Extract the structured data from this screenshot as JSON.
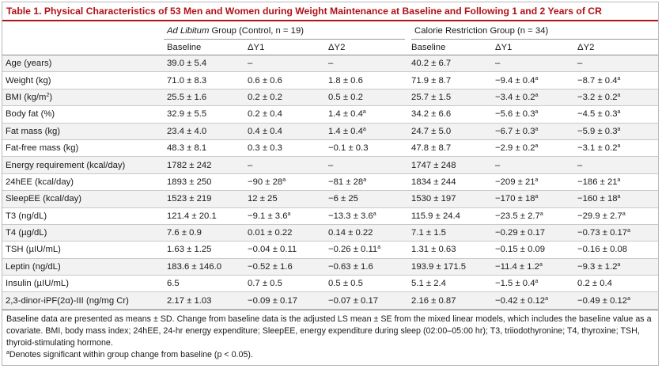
{
  "caption": "Table 1.  Physical Characteristics of 53 Men and Women during Weight Maintenance at Baseline and Following 1 and 2 Years of CR",
  "groups": {
    "al_italic": "Ad Libitum",
    "al_rest": " Group (Control, n = 19)",
    "cr": "Calorie Restriction Group (n = 34)"
  },
  "columns": [
    "Baseline",
    "ΔY1",
    "ΔY2",
    "Baseline",
    "ΔY1",
    "ΔY2"
  ],
  "significance_marker": "a",
  "rows": [
    {
      "label": "Age (years)",
      "cells": [
        {
          "v": "39.0 ± 5.4"
        },
        {
          "v": "–"
        },
        {
          "v": "–"
        },
        {
          "v": "40.2 ± 6.7"
        },
        {
          "v": "–"
        },
        {
          "v": "–"
        }
      ]
    },
    {
      "label": "Weight (kg)",
      "cells": [
        {
          "v": "71.0 ± 8.3"
        },
        {
          "v": "0.6 ± 0.6"
        },
        {
          "v": "1.8 ± 0.6"
        },
        {
          "v": "71.9 ± 8.7"
        },
        {
          "v": "−9.4 ± 0.4",
          "sig": true
        },
        {
          "v": "−8.7 ± 0.4",
          "sig": true
        }
      ]
    },
    {
      "label_main": "BMI (kg/m",
      "label_sup": "2",
      "label_tail": ")",
      "cells": [
        {
          "v": "25.5 ± 1.6"
        },
        {
          "v": "0.2 ± 0.2"
        },
        {
          "v": "0.5 ± 0.2"
        },
        {
          "v": "25.7 ± 1.5"
        },
        {
          "v": "−3.4 ± 0.2",
          "sig": true
        },
        {
          "v": "−3.2 ± 0.2",
          "sig": true
        }
      ]
    },
    {
      "label": "Body fat (%)",
      "cells": [
        {
          "v": "32.9 ± 5.5"
        },
        {
          "v": "0.2 ± 0.4"
        },
        {
          "v": "1.4 ± 0.4",
          "sig": true
        },
        {
          "v": "34.2 ± 6.6"
        },
        {
          "v": "−5.6 ± 0.3",
          "sig": true
        },
        {
          "v": "−4.5 ± 0.3",
          "sig": true
        }
      ]
    },
    {
      "label": "Fat mass (kg)",
      "cells": [
        {
          "v": "23.4 ± 4.0"
        },
        {
          "v": "0.4 ± 0.4"
        },
        {
          "v": "1.4 ± 0.4",
          "sig": true
        },
        {
          "v": "24.7 ± 5.0"
        },
        {
          "v": "−6.7 ± 0.3",
          "sig": true
        },
        {
          "v": "−5.9 ± 0.3",
          "sig": true
        }
      ]
    },
    {
      "label": "Fat-free mass (kg)",
      "cells": [
        {
          "v": "48.3 ± 8.1"
        },
        {
          "v": "0.3 ± 0.3"
        },
        {
          "v": "−0.1 ± 0.3"
        },
        {
          "v": "47.8 ± 8.7"
        },
        {
          "v": "−2.9 ± 0.2",
          "sig": true
        },
        {
          "v": "−3.1 ± 0.2",
          "sig": true
        }
      ]
    },
    {
      "label": "Energy requirement (kcal/day)",
      "cells": [
        {
          "v": "1782 ± 242"
        },
        {
          "v": "–"
        },
        {
          "v": "–"
        },
        {
          "v": "1747 ± 248"
        },
        {
          "v": "–"
        },
        {
          "v": "–"
        }
      ]
    },
    {
      "label": "24hEE (kcal/day)",
      "cells": [
        {
          "v": "1893 ± 250"
        },
        {
          "v": "−90 ± 28",
          "sig": true
        },
        {
          "v": "−81 ± 28",
          "sig": true
        },
        {
          "v": "1834 ± 244"
        },
        {
          "v": "−209 ± 21",
          "sig": true
        },
        {
          "v": "−186 ± 21",
          "sig": true
        }
      ]
    },
    {
      "label": "SleepEE (kcal/day)",
      "cells": [
        {
          "v": "1523 ± 219"
        },
        {
          "v": "12 ± 25"
        },
        {
          "v": "−6 ± 25"
        },
        {
          "v": "1530 ± 197"
        },
        {
          "v": "−170 ± 18",
          "sig": true
        },
        {
          "v": "−160 ± 18",
          "sig": true
        }
      ]
    },
    {
      "label": "T3 (ng/dL)",
      "cells": [
        {
          "v": "121.4 ± 20.1"
        },
        {
          "v": "−9.1 ± 3.6",
          "sig": true
        },
        {
          "v": "−13.3 ± 3.6",
          "sig": true
        },
        {
          "v": "115.9 ± 24.4"
        },
        {
          "v": "−23.5 ± 2.7",
          "sig": true
        },
        {
          "v": "−29.9 ± 2.7",
          "sig": true
        }
      ]
    },
    {
      "label": "T4 (µg/dL)",
      "cells": [
        {
          "v": "7.6 ± 0.9"
        },
        {
          "v": "0.01 ± 0.22"
        },
        {
          "v": "0.14 ± 0.22"
        },
        {
          "v": "7.1 ± 1.5"
        },
        {
          "v": "−0.29 ± 0.17"
        },
        {
          "v": "−0.73 ± 0.17",
          "sig": true
        }
      ]
    },
    {
      "label": "TSH (µIU/mL)",
      "cells": [
        {
          "v": "1.63 ± 1.25"
        },
        {
          "v": "−0.04 ± 0.11"
        },
        {
          "v": "−0.26 ± 0.11",
          "sig": true
        },
        {
          "v": "1.31 ± 0.63"
        },
        {
          "v": "−0.15 ± 0.09"
        },
        {
          "v": "−0.16 ± 0.08"
        }
      ]
    },
    {
      "label": "Leptin (ng/dL)",
      "cells": [
        {
          "v": "183.6 ± 146.0"
        },
        {
          "v": "−0.52 ± 1.6"
        },
        {
          "v": "−0.63 ± 1.6"
        },
        {
          "v": "193.9 ± 171.5"
        },
        {
          "v": "−11.4 ± 1.2",
          "sig": true
        },
        {
          "v": "−9.3 ± 1.2",
          "sig": true
        }
      ]
    },
    {
      "label": "Insulin (µIU/mL)",
      "cells": [
        {
          "v": "6.5"
        },
        {
          "v": "0.7 ± 0.5"
        },
        {
          "v": "0.5 ± 0.5"
        },
        {
          "v": "5.1 ± 2.4"
        },
        {
          "v": "−1.5 ± 0.4",
          "sig": true
        },
        {
          "v": "0.2 ± 0.4"
        }
      ]
    },
    {
      "label": "2,3-dinor-iPF(2α)-III (ng/mg Cr)",
      "cells": [
        {
          "v": "2.17 ± 1.03"
        },
        {
          "v": "−0.09 ± 0.17"
        },
        {
          "v": "−0.07 ± 0.17"
        },
        {
          "v": "2.16 ± 0.87"
        },
        {
          "v": "−0.42 ± 0.12",
          "sig": true
        },
        {
          "v": "−0.49 ± 0.12",
          "sig": true
        }
      ]
    }
  ],
  "footnotes": {
    "main": "Baseline data are presented as means ± SD. Change from baseline data is the adjusted LS mean ± SE from the mixed linear models, which includes the baseline value as a covariate. BMI, body mass index; 24hEE, 24-hr energy expenditure; SleepEE, energy expenditure during sleep (02:00–05:00 hr); T3, triiodothyronine; T4, thyroxine; TSH, thyroid-stimulating hormone.",
    "sig_marker": "a",
    "sig_text": "Denotes significant within group change from baseline (p < 0.05)."
  },
  "colors": {
    "caption": "#b01218",
    "row_shade": "#f2f2f2"
  }
}
